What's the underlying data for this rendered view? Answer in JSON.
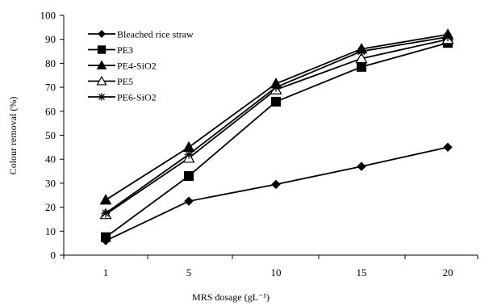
{
  "chart_data": {
    "type": "line",
    "categories": [
      "1",
      "5",
      "10",
      "15",
      "20"
    ],
    "xlabel": "MRS dosage (gL⁻¹)",
    "ylabel": "Colour removal (%)",
    "ylim": [
      0,
      100
    ],
    "yticks": [
      0,
      10,
      20,
      30,
      40,
      50,
      60,
      70,
      80,
      90,
      100
    ],
    "grid": false,
    "legend_position": "top-left",
    "series": [
      {
        "name": "Bleached rice straw",
        "marker": "diamond-filled",
        "values": [
          6,
          22.5,
          29.5,
          37,
          45
        ]
      },
      {
        "name": "PE3",
        "marker": "square-filled",
        "values": [
          7.5,
          33,
          64,
          78.5,
          88.5
        ]
      },
      {
        "name": "PE4-SiO2",
        "marker": "triangle-filled",
        "values": [
          23,
          45,
          71.5,
          86,
          92
        ]
      },
      {
        "name": "PE5",
        "marker": "triangle-open",
        "values": [
          17,
          40.5,
          69,
          82,
          90
        ]
      },
      {
        "name": "PE6-SiO2",
        "marker": "star",
        "values": [
          17.5,
          42,
          70,
          85,
          91
        ]
      }
    ]
  },
  "colors": {
    "series": "#000000",
    "axis": "#000000"
  }
}
